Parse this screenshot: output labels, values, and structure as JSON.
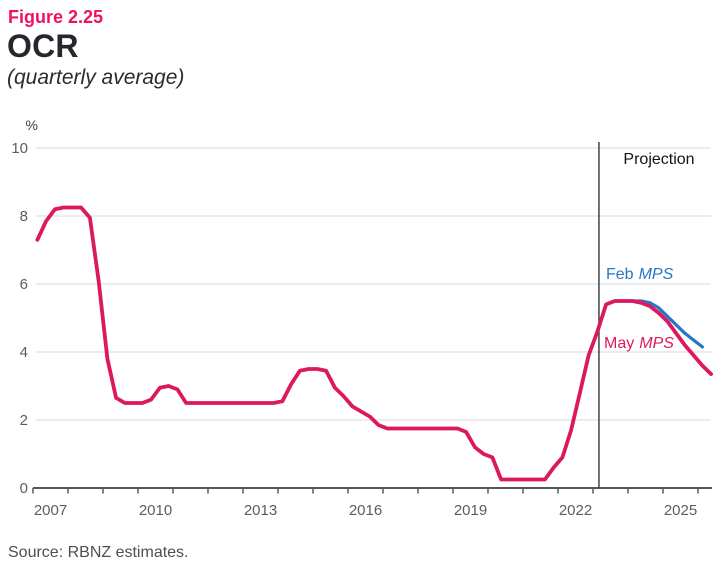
{
  "header": {
    "figure_label": "Figure 2.25",
    "title": "OCR",
    "subtitle": "(quarterly average)"
  },
  "footer": {
    "source": "Source: RBNZ estimates."
  },
  "colors": {
    "brand_pink": "#dc195f",
    "brand_blue": "#2478c4",
    "figure_label_pink": "#ee1266",
    "gridline": "#d8d8d8",
    "axis": "#55585a"
  },
  "chart_data": {
    "type": "line",
    "title": "OCR",
    "subtitle": "(quarterly average)",
    "ylabel": "%",
    "xlabel": "",
    "ylim": [
      0,
      10
    ],
    "y_ticks": [
      0,
      2,
      4,
      6,
      8,
      10
    ],
    "xlim": [
      2007,
      2026.4
    ],
    "x_ticks": [
      2007,
      2010,
      2013,
      2016,
      2019,
      2022,
      2025
    ],
    "minor_tick_years": [
      2007,
      2026
    ],
    "grid": "horizontal",
    "legend_position": "inline-annotations",
    "projection_divider_x": 2023.17,
    "projection_label": "Projection",
    "frequency": "quarterly",
    "series": [
      {
        "name": "Feb MPS",
        "label_prefix": "Feb",
        "label_italic": "MPS",
        "color": "#2478c4",
        "x_start": 2023.125,
        "x_step": 0.25,
        "values": [
          4.6,
          5.4,
          5.5,
          5.5,
          5.5,
          5.5,
          5.45,
          5.3,
          5.05,
          4.8,
          4.55,
          4.35,
          4.15
        ]
      },
      {
        "name": "May MPS",
        "label_prefix": "May",
        "label_italic": "MPS",
        "color": "#dc195f",
        "x_start": 2007.125,
        "x_step": 0.25,
        "values": [
          7.3,
          7.85,
          8.2,
          8.25,
          8.25,
          8.25,
          7.95,
          6.1,
          3.8,
          2.65,
          2.5,
          2.5,
          2.5,
          2.6,
          2.95,
          3.0,
          2.9,
          2.5,
          2.5,
          2.5,
          2.5,
          2.5,
          2.5,
          2.5,
          2.5,
          2.5,
          2.5,
          2.5,
          2.55,
          3.05,
          3.45,
          3.5,
          3.5,
          3.45,
          2.95,
          2.7,
          2.4,
          2.25,
          2.1,
          1.85,
          1.75,
          1.75,
          1.75,
          1.75,
          1.75,
          1.75,
          1.75,
          1.75,
          1.75,
          1.65,
          1.2,
          1.0,
          0.9,
          0.25,
          0.25,
          0.25,
          0.25,
          0.25,
          0.25,
          0.6,
          0.9,
          1.7,
          2.8,
          3.9,
          4.6,
          5.4,
          5.5,
          5.5,
          5.5,
          5.45,
          5.35,
          5.15,
          4.9,
          4.55,
          4.2,
          3.9,
          3.6,
          3.35
        ]
      }
    ]
  }
}
